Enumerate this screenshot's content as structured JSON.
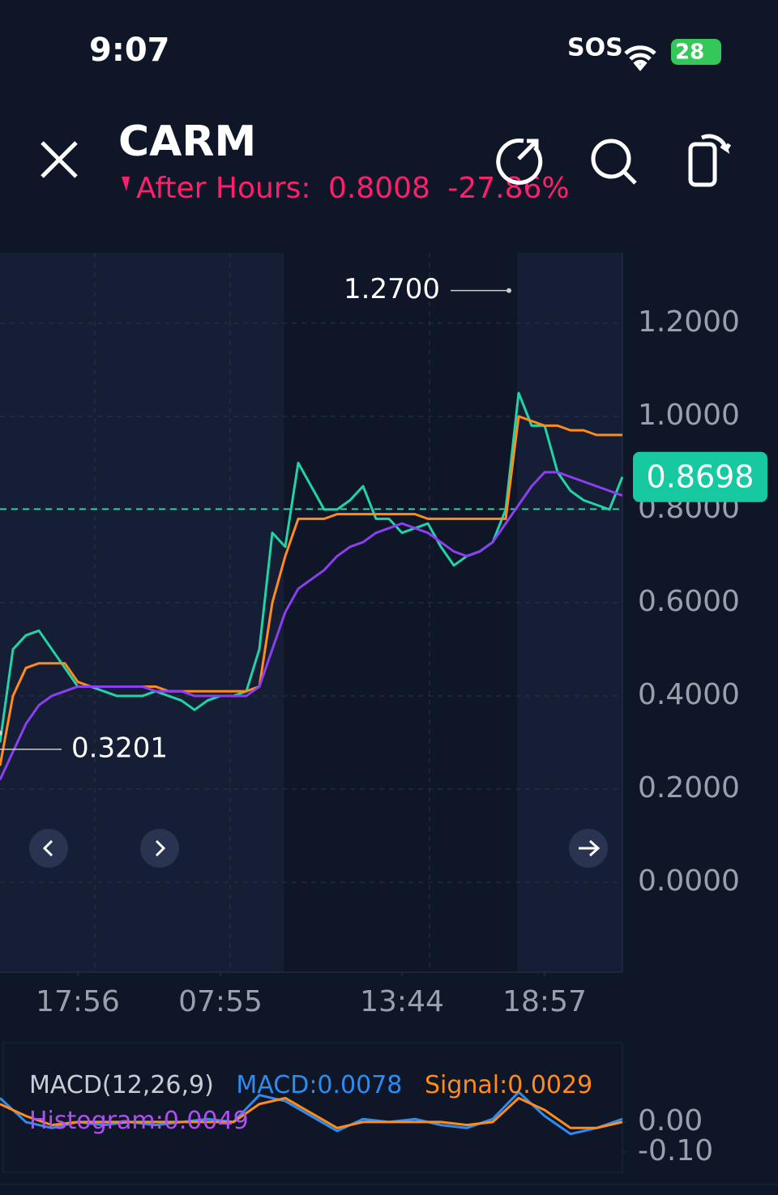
{
  "status_bar": {
    "time": "9:07",
    "carrier": "SOS",
    "battery": "28"
  },
  "header": {
    "symbol": "CARM",
    "session": "After Hours:",
    "price": "0.8008",
    "change": "-27.86%"
  },
  "chart_data": [
    {
      "type": "line",
      "xlim": [
        0,
        48
      ],
      "xticks": [
        {
          "value": 6,
          "label": "17:56"
        },
        {
          "value": 17,
          "label": "07:55"
        },
        {
          "value": 31,
          "label": "13:44"
        },
        {
          "value": 42,
          "label": "18:57"
        }
      ],
      "ylim": [
        -0.193,
        1.351
      ],
      "yticks": [
        {
          "value": 0,
          "label": "0.0000"
        },
        {
          "value": 0.2,
          "label": "0.2000"
        },
        {
          "value": 0.4,
          "label": "0.4000"
        },
        {
          "value": 0.6,
          "label": "0.6000"
        },
        {
          "value": 0.8,
          "label": "0.8000"
        },
        {
          "value": 1.0,
          "label": "1.0000"
        },
        {
          "value": 1.2,
          "label": "1.2000"
        }
      ],
      "grid": true,
      "series": [
        {
          "color": "#22d3a6",
          "values": [
            0.3,
            0.5,
            0.53,
            0.54,
            0.5,
            0.46,
            0.42,
            0.42,
            0.41,
            0.4,
            0.4,
            0.4,
            0.41,
            0.4,
            0.39,
            0.37,
            0.39,
            0.4,
            0.4,
            0.41,
            0.5,
            0.75,
            0.72,
            0.9,
            0.85,
            0.8,
            0.8,
            0.82,
            0.85,
            0.78,
            0.78,
            0.75,
            0.76,
            0.77,
            0.72,
            0.68,
            0.7,
            0.71,
            0.73,
            0.8,
            1.05,
            0.98,
            0.98,
            0.88,
            0.84,
            0.82,
            0.81,
            0.8,
            0.87
          ]
        },
        {
          "color": "#ff8c1a",
          "values": [
            0.25,
            0.4,
            0.46,
            0.47,
            0.47,
            0.47,
            0.43,
            0.42,
            0.42,
            0.42,
            0.42,
            0.42,
            0.42,
            0.41,
            0.41,
            0.41,
            0.41,
            0.41,
            0.41,
            0.41,
            0.42,
            0.6,
            0.7,
            0.78,
            0.78,
            0.78,
            0.79,
            0.79,
            0.79,
            0.79,
            0.79,
            0.79,
            0.79,
            0.78,
            0.78,
            0.78,
            0.78,
            0.78,
            0.78,
            0.78,
            1.0,
            0.99,
            0.98,
            0.98,
            0.97,
            0.97,
            0.96,
            0.96,
            0.96
          ]
        },
        {
          "color": "#8b3ff0",
          "values": [
            0.22,
            0.28,
            0.34,
            0.38,
            0.4,
            0.41,
            0.42,
            0.42,
            0.42,
            0.42,
            0.42,
            0.42,
            0.41,
            0.41,
            0.41,
            0.4,
            0.4,
            0.4,
            0.4,
            0.4,
            0.42,
            0.5,
            0.58,
            0.63,
            0.65,
            0.67,
            0.7,
            0.72,
            0.73,
            0.75,
            0.76,
            0.77,
            0.76,
            0.75,
            0.73,
            0.71,
            0.7,
            0.71,
            0.73,
            0.77,
            0.81,
            0.85,
            0.88,
            0.88,
            0.87,
            0.86,
            0.85,
            0.84,
            0.83
          ]
        }
      ],
      "annotations": [
        {
          "x": 39.25,
          "value": 1.27,
          "label": "1.2700"
        },
        {
          "x": 0,
          "value": 0.3201,
          "label": "0.3201"
        }
      ],
      "last_price": {
        "value": 0.8698,
        "label": "0.8698"
      },
      "ref_line": 0.8008
    },
    {
      "type": "line",
      "title": "MACD(12,26,9)",
      "legend": [
        "MACD:0.0078",
        "Signal:0.0029",
        "Histogram:0.0049"
      ],
      "xlim": [
        0,
        24
      ],
      "ylim": [
        -0.168,
        0.265
      ],
      "yticks": [
        {
          "value": 0,
          "label": "0.00"
        },
        {
          "value": -0.1,
          "label": "-0.10"
        }
      ],
      "series": [
        {
          "color": "#2d8cf0",
          "values": [
            0.08,
            0.0,
            -0.02,
            0.0,
            -0.01,
            0.0,
            -0.01,
            0.0,
            0.01,
            0.0,
            0.09,
            0.07,
            0.02,
            -0.03,
            0.01,
            0.0,
            0.01,
            -0.01,
            -0.02,
            0.01,
            0.1,
            0.02,
            -0.04,
            -0.02,
            0.01
          ]
        },
        {
          "color": "#ff8c1a",
          "values": [
            0.06,
            0.02,
            -0.01,
            0.0,
            0.0,
            0.0,
            0.0,
            0.0,
            0.0,
            0.0,
            0.06,
            0.08,
            0.03,
            -0.02,
            0.0,
            0.0,
            0.0,
            0.0,
            -0.01,
            0.0,
            0.08,
            0.04,
            -0.02,
            -0.02,
            0.0
          ]
        }
      ]
    }
  ]
}
